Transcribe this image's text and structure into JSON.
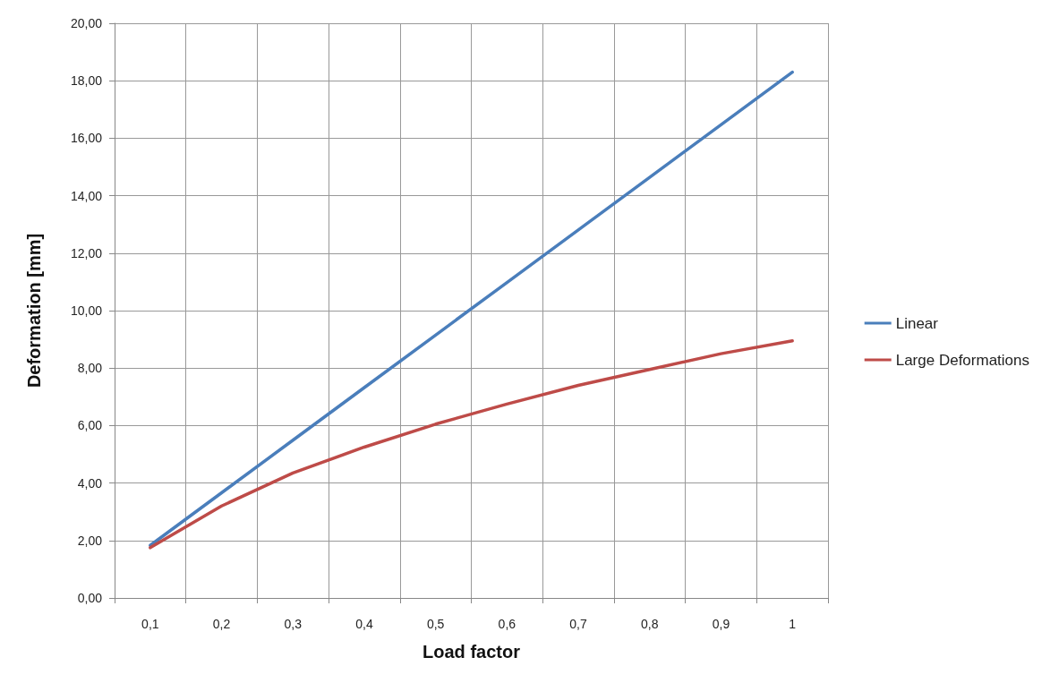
{
  "chart_data": {
    "type": "line",
    "xlabel": "Load factor",
    "ylabel": "Deformation [mm]",
    "categories": [
      "0,1",
      "0,2",
      "0,3",
      "0,4",
      "0,5",
      "0,6",
      "0,7",
      "0,8",
      "0,9",
      "1"
    ],
    "series": [
      {
        "name": "Linear",
        "color": "#4a7ebb",
        "values": [
          1.83,
          3.66,
          5.49,
          7.32,
          9.15,
          10.98,
          12.81,
          14.64,
          16.47,
          18.3
        ]
      },
      {
        "name": "Large Deformations",
        "color": "#be4b48",
        "values": [
          1.75,
          3.2,
          4.35,
          5.25,
          6.05,
          6.75,
          7.4,
          7.95,
          8.5,
          8.95
        ]
      }
    ],
    "ylim": [
      0,
      20
    ],
    "yticks": [
      {
        "value": 0,
        "label": "0,00"
      },
      {
        "value": 2,
        "label": "2,00"
      },
      {
        "value": 4,
        "label": "4,00"
      },
      {
        "value": 6,
        "label": "6,00"
      },
      {
        "value": 8,
        "label": "8,00"
      },
      {
        "value": 10,
        "label": "10,00"
      },
      {
        "value": 12,
        "label": "12,00"
      },
      {
        "value": 14,
        "label": "14,00"
      },
      {
        "value": 16,
        "label": "16,00"
      },
      {
        "value": 18,
        "label": "18,00"
      },
      {
        "value": 20,
        "label": "20,00"
      }
    ],
    "grid": true,
    "legend": "right",
    "marker": "none",
    "line_style": "solid"
  }
}
